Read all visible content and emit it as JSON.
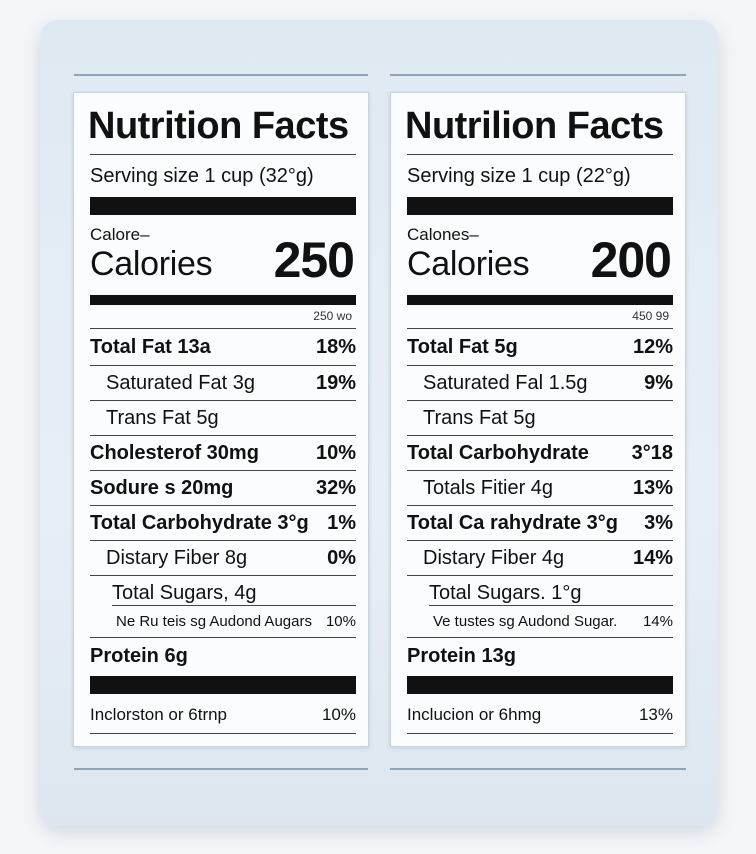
{
  "labels": [
    {
      "title": "Nutrition Facts",
      "serving": "Serving size 1 cup (32°g)",
      "calories_small": "Calore–",
      "calories_label": "Calories",
      "calories_value": "250",
      "dv_header": "250 wo",
      "rows": [
        {
          "name": "Total Fat 13a",
          "pct": "18%"
        },
        {
          "name": "Saturated Fat 3g",
          "pct": "19%"
        },
        {
          "name": "Trans Fat 5g",
          "pct": ""
        },
        {
          "name": "Cholesterof 30mg",
          "pct": "10%"
        },
        {
          "name": "Sodure  s 20mg",
          "pct": "32%"
        },
        {
          "name": "Total Carbohydrate  3°g",
          "pct": "1%"
        },
        {
          "name": "Distary Fiber 8g",
          "pct": "0%"
        },
        {
          "name": "Total Sugars, 4g",
          "pct": ""
        },
        {
          "name": "Ne Ru teis sg Audond Augars",
          "pct": "10%"
        }
      ],
      "protein": "Protein 6g",
      "footer_name": "Inclorston or 6trnp",
      "footer_pct": "10%"
    },
    {
      "title": "Nutrilion Facts",
      "serving": "Serving size 1 cup (22°g)",
      "calories_small": "Calones–",
      "calories_label": "Calories",
      "calories_value": "200",
      "dv_header": "450 99",
      "rows": [
        {
          "name": "Total Fat 5g",
          "pct": "12%"
        },
        {
          "name": "Saturated Fal 1.5g",
          "pct": "9%"
        },
        {
          "name": "Trans Fat 5g",
          "pct": ""
        },
        {
          "name": "Total Carbohydrate",
          "pct": "3°18"
        },
        {
          "name": "Totals Fitier 4g",
          "pct": "13%"
        },
        {
          "name": "Total Ca rahydrate  3°g",
          "pct": "3%"
        },
        {
          "name": "Distary Fiber 4g",
          "pct": "14%"
        },
        {
          "name": "Total Sugars. 1°g",
          "pct": ""
        },
        {
          "name": "Ve tustes sg Audond Sugar.",
          "pct": "14%"
        }
      ],
      "protein": "Protein 13g",
      "footer_name": "Inclucion or 6hmg",
      "footer_pct": "13%"
    }
  ]
}
